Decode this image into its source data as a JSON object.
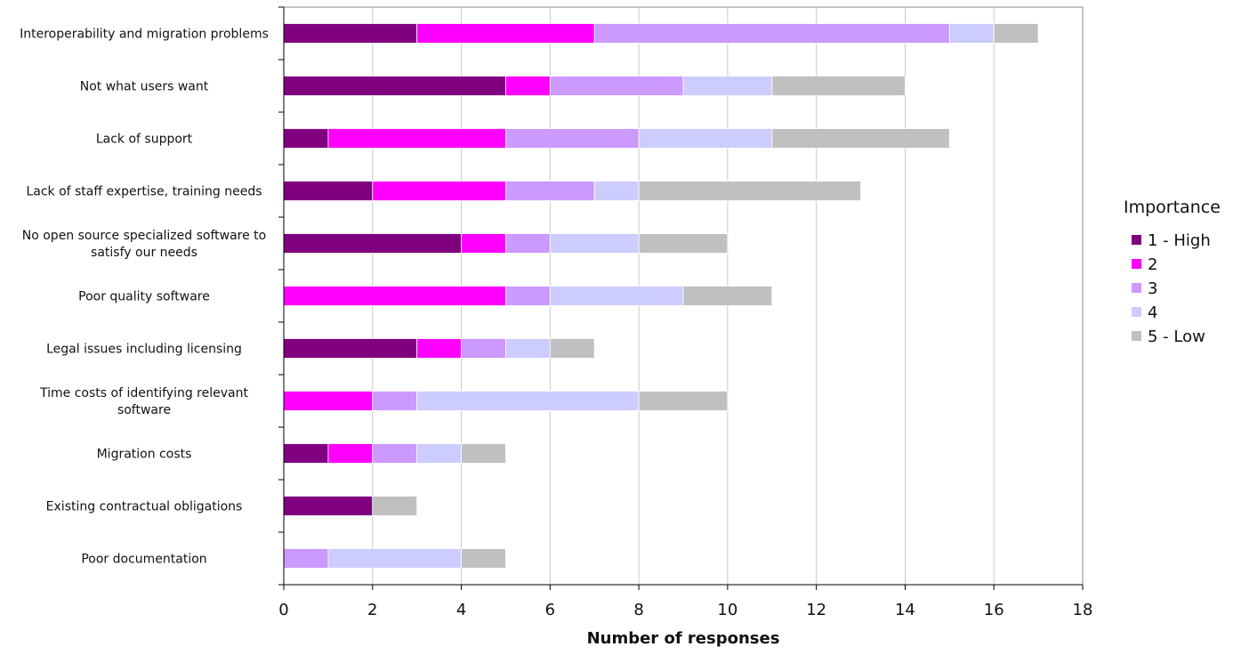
{
  "chart_data": {
    "type": "bar",
    "orientation": "horizontal",
    "stacked": true,
    "categories": [
      "Interoperability and migration problems",
      "Not what users want",
      "Lack of support",
      "Lack of staff expertise, training needs",
      "No open source specialized software to satisfy our needs",
      "Poor quality software",
      "Legal issues including licensing",
      "Time costs of identifying relevant software",
      "Migration costs",
      "Existing contractual obligations",
      "Poor documentation"
    ],
    "category_lines": [
      [
        "Interoperability and migration problems"
      ],
      [
        "Not what users want"
      ],
      [
        "Lack of support"
      ],
      [
        "Lack of staff expertise, training needs"
      ],
      [
        "No open source specialized software to",
        "satisfy our needs"
      ],
      [
        "Poor quality software"
      ],
      [
        "Legal issues including licensing"
      ],
      [
        "Time costs of identifying relevant",
        "software"
      ],
      [
        "Migration costs"
      ],
      [
        "Existing contractual obligations"
      ],
      [
        "Poor documentation"
      ]
    ],
    "series": [
      {
        "name": "1 - High",
        "color": "#800080",
        "values": [
          3,
          5,
          1,
          2,
          4,
          0,
          3,
          0,
          1,
          2,
          0
        ]
      },
      {
        "name": "2",
        "color": "#ff00ff",
        "values": [
          4,
          1,
          4,
          3,
          1,
          5,
          1,
          2,
          1,
          0,
          0
        ]
      },
      {
        "name": "3",
        "color": "#cc99ff",
        "values": [
          8,
          3,
          3,
          2,
          1,
          1,
          1,
          1,
          1,
          0,
          1
        ]
      },
      {
        "name": "4",
        "color": "#ccccff",
        "values": [
          1,
          2,
          3,
          1,
          2,
          3,
          1,
          5,
          1,
          0,
          3
        ]
      },
      {
        "name": "5 - Low",
        "color": "#c0c0c0",
        "values": [
          1,
          3,
          4,
          5,
          2,
          2,
          1,
          2,
          1,
          1,
          1
        ]
      }
    ],
    "xlabel": "Number of responses",
    "ylabel": "",
    "xlim": [
      0,
      18
    ],
    "xticks": [
      "0",
      "2",
      "4",
      "6",
      "8",
      "10",
      "12",
      "14",
      "16",
      "18"
    ],
    "grid": "vertical",
    "legend": {
      "title": "Importance",
      "placement": "right"
    }
  }
}
